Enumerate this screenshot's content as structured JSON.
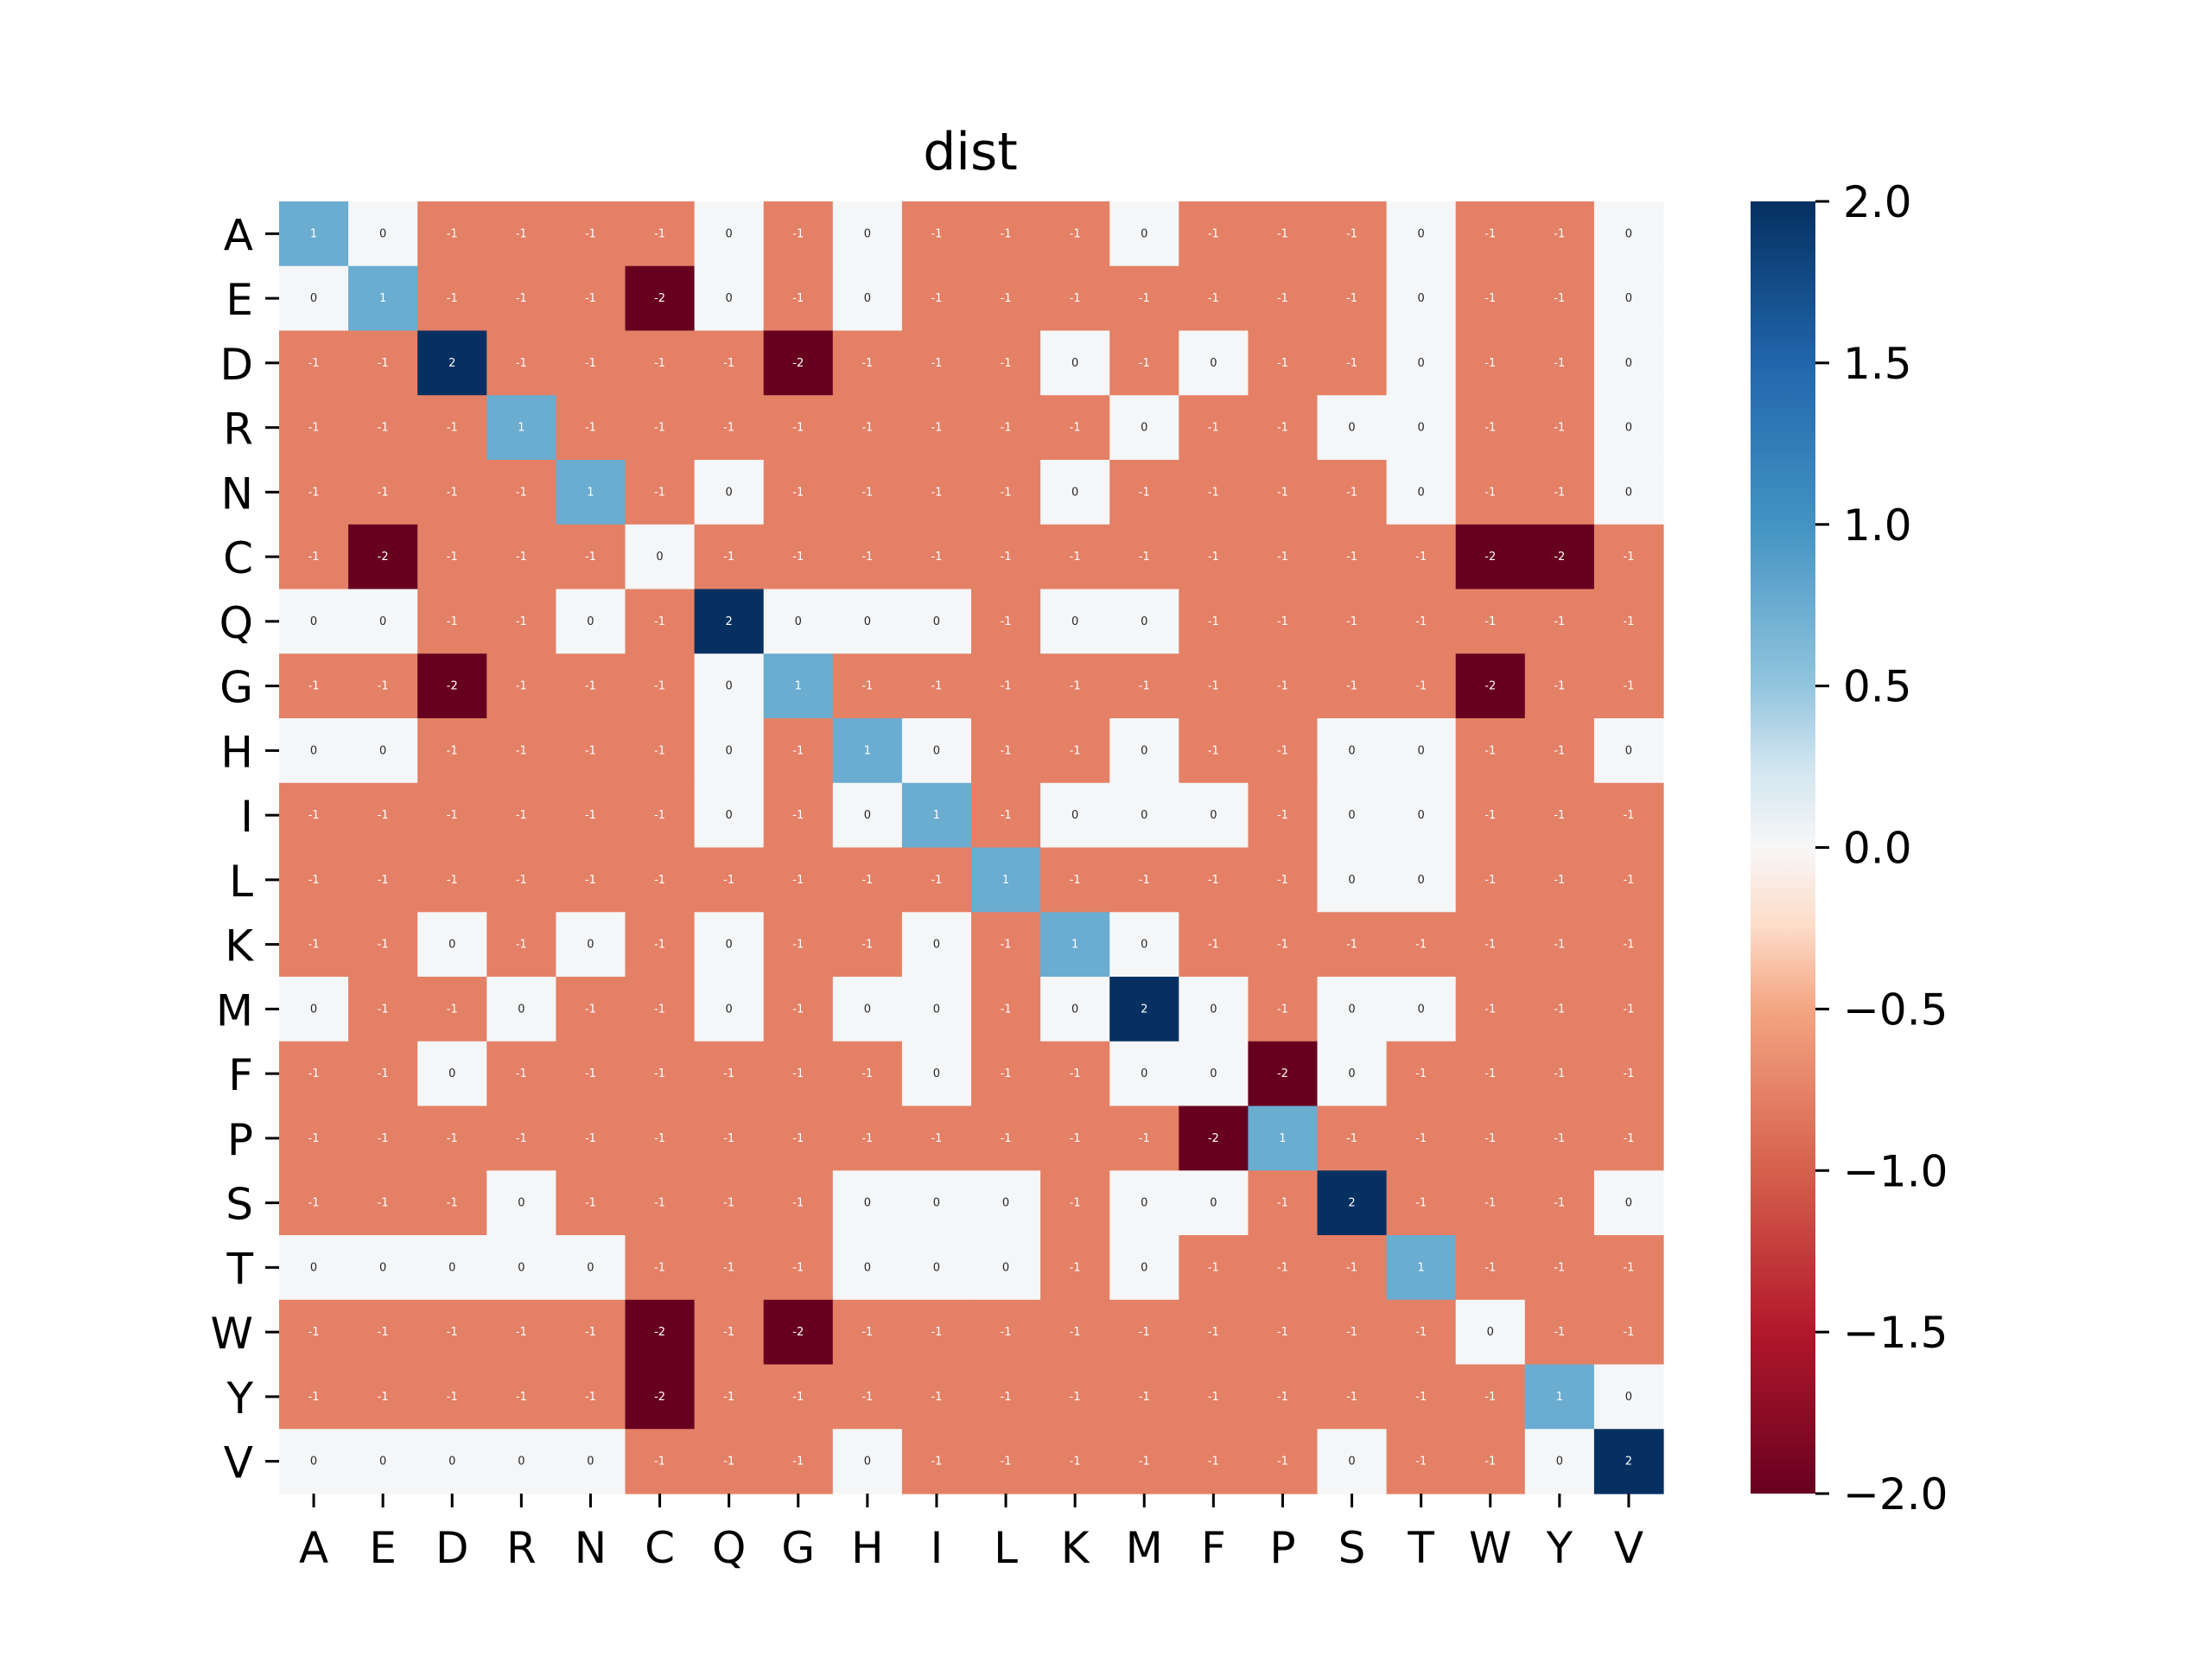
{
  "chart_data": {
    "type": "heatmap",
    "title": "dist",
    "xlabel": "",
    "ylabel": "",
    "x_labels": [
      "A",
      "E",
      "D",
      "R",
      "N",
      "C",
      "Q",
      "G",
      "H",
      "I",
      "L",
      "K",
      "M",
      "F",
      "P",
      "S",
      "T",
      "W",
      "Y",
      "V"
    ],
    "y_labels": [
      "A",
      "E",
      "D",
      "R",
      "N",
      "C",
      "Q",
      "G",
      "H",
      "I",
      "L",
      "K",
      "M",
      "F",
      "P",
      "S",
      "T",
      "W",
      "Y",
      "V"
    ],
    "values": [
      [
        1,
        0,
        -1,
        -1,
        -1,
        -1,
        0,
        -1,
        0,
        -1,
        -1,
        -1,
        0,
        -1,
        -1,
        -1,
        0,
        -1,
        -1,
        0
      ],
      [
        0,
        1,
        -1,
        -1,
        -1,
        -2,
        0,
        -1,
        0,
        -1,
        -1,
        -1,
        -1,
        -1,
        -1,
        -1,
        0,
        -1,
        -1,
        0
      ],
      [
        -1,
        -1,
        2,
        -1,
        -1,
        -1,
        -1,
        -2,
        -1,
        -1,
        -1,
        0,
        -1,
        0,
        -1,
        -1,
        0,
        -1,
        -1,
        0
      ],
      [
        -1,
        -1,
        -1,
        1,
        -1,
        -1,
        -1,
        -1,
        -1,
        -1,
        -1,
        -1,
        0,
        -1,
        -1,
        0,
        0,
        -1,
        -1,
        0
      ],
      [
        -1,
        -1,
        -1,
        -1,
        1,
        -1,
        0,
        -1,
        -1,
        -1,
        -1,
        0,
        -1,
        -1,
        -1,
        -1,
        0,
        -1,
        -1,
        0
      ],
      [
        -1,
        -2,
        -1,
        -1,
        -1,
        0,
        -1,
        -1,
        -1,
        -1,
        -1,
        -1,
        -1,
        -1,
        -1,
        -1,
        -1,
        -2,
        -2,
        -1
      ],
      [
        0,
        0,
        -1,
        -1,
        0,
        -1,
        2,
        0,
        0,
        0,
        -1,
        0,
        0,
        -1,
        -1,
        -1,
        -1,
        -1,
        -1,
        -1
      ],
      [
        -1,
        -1,
        -2,
        -1,
        -1,
        -1,
        0,
        1,
        -1,
        -1,
        -1,
        -1,
        -1,
        -1,
        -1,
        -1,
        -1,
        -2,
        -1,
        -1
      ],
      [
        0,
        0,
        -1,
        -1,
        -1,
        -1,
        0,
        -1,
        1,
        0,
        -1,
        -1,
        0,
        -1,
        -1,
        0,
        0,
        -1,
        -1,
        0
      ],
      [
        -1,
        -1,
        -1,
        -1,
        -1,
        -1,
        0,
        -1,
        0,
        1,
        -1,
        0,
        0,
        0,
        -1,
        0,
        0,
        -1,
        -1,
        -1
      ],
      [
        -1,
        -1,
        -1,
        -1,
        -1,
        -1,
        -1,
        -1,
        -1,
        -1,
        1,
        -1,
        -1,
        -1,
        -1,
        0,
        0,
        -1,
        -1,
        -1
      ],
      [
        -1,
        -1,
        0,
        -1,
        0,
        -1,
        0,
        -1,
        -1,
        0,
        -1,
        1,
        0,
        -1,
        -1,
        -1,
        -1,
        -1,
        -1,
        -1
      ],
      [
        0,
        -1,
        -1,
        0,
        -1,
        -1,
        0,
        -1,
        0,
        0,
        -1,
        0,
        2,
        0,
        -1,
        0,
        0,
        -1,
        -1,
        -1
      ],
      [
        -1,
        -1,
        0,
        -1,
        -1,
        -1,
        -1,
        -1,
        -1,
        0,
        -1,
        -1,
        0,
        0,
        -2,
        0,
        -1,
        -1,
        -1,
        -1
      ],
      [
        -1,
        -1,
        -1,
        -1,
        -1,
        -1,
        -1,
        -1,
        -1,
        -1,
        -1,
        -1,
        -1,
        -2,
        1,
        -1,
        -1,
        -1,
        -1,
        -1
      ],
      [
        -1,
        -1,
        -1,
        0,
        -1,
        -1,
        -1,
        -1,
        0,
        0,
        0,
        -1,
        0,
        0,
        -1,
        2,
        -1,
        -1,
        -1,
        0
      ],
      [
        0,
        0,
        0,
        0,
        0,
        -1,
        -1,
        -1,
        0,
        0,
        0,
        -1,
        0,
        -1,
        -1,
        -1,
        1,
        -1,
        -1,
        -1
      ],
      [
        -1,
        -1,
        -1,
        -1,
        -1,
        -2,
        -1,
        -2,
        -1,
        -1,
        -1,
        -1,
        -1,
        -1,
        -1,
        -1,
        -1,
        0,
        -1,
        -1
      ],
      [
        -1,
        -1,
        -1,
        -1,
        -1,
        -2,
        -1,
        -1,
        -1,
        -1,
        -1,
        -1,
        -1,
        -1,
        -1,
        -1,
        -1,
        -1,
        1,
        0
      ],
      [
        0,
        0,
        0,
        0,
        0,
        -1,
        -1,
        -1,
        0,
        -1,
        -1,
        -1,
        -1,
        -1,
        -1,
        0,
        -1,
        -1,
        0,
        2
      ]
    ],
    "vmin": -2.0,
    "vmax": 2.0,
    "colormap": "RdBu",
    "colors": {
      "-2": "#67001f",
      "-1": "#e48066",
      "0": "#f5f6f7",
      "1": "#6bacd1",
      "2": "#053061"
    },
    "colorbar": {
      "ticks": [
        2.0,
        1.5,
        1.0,
        0.5,
        0.0,
        -0.5,
        -1.0,
        -1.5,
        -2.0
      ],
      "tick_labels": [
        "2.0",
        "1.5",
        "1.0",
        "0.5",
        "0.0",
        "−0.5",
        "−1.0",
        "−1.5",
        "−2.0"
      ],
      "stops": [
        {
          "v": -2.0,
          "c": "#67001f"
        },
        {
          "v": -1.5,
          "c": "#b2182b"
        },
        {
          "v": -1.0,
          "c": "#d6604d"
        },
        {
          "v": -0.5,
          "c": "#f4a582"
        },
        {
          "v": -0.25,
          "c": "#fddbc7"
        },
        {
          "v": 0.0,
          "c": "#f7f7f7"
        },
        {
          "v": 0.25,
          "c": "#d1e5f0"
        },
        {
          "v": 0.5,
          "c": "#92c5de"
        },
        {
          "v": 1.0,
          "c": "#4393c3"
        },
        {
          "v": 1.5,
          "c": "#2166ac"
        },
        {
          "v": 2.0,
          "c": "#053061"
        }
      ]
    },
    "annotated": true
  }
}
